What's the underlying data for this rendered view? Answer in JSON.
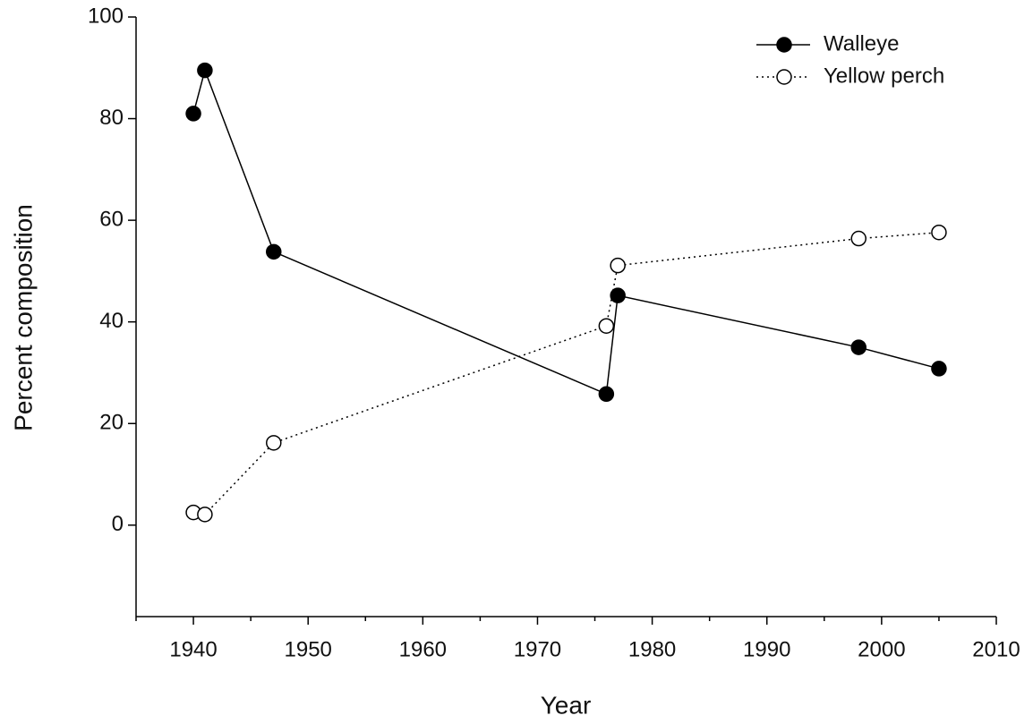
{
  "chart_data": {
    "type": "line",
    "xlabel": "Year",
    "ylabel": "Percent composition",
    "xlim": [
      1935,
      2010
    ],
    "xticks": [
      1940,
      1950,
      1960,
      1970,
      1980,
      1990,
      2000,
      2010
    ],
    "xminorticks": [
      1935,
      1945,
      1955,
      1965,
      1975,
      1985,
      1995,
      2005
    ],
    "ylim": [
      -18,
      100
    ],
    "yticks": [
      0,
      20,
      40,
      60,
      80,
      100
    ],
    "legend": "upper right",
    "series": [
      {
        "name": "Walleye",
        "color": "#000000",
        "linestyle": "solid",
        "marker": "filled",
        "x": [
          1940,
          1941,
          1947,
          1976,
          1977,
          1998,
          2005
        ],
        "values": [
          81.0,
          89.5,
          53.8,
          25.8,
          45.2,
          35.0,
          30.8
        ]
      },
      {
        "name": "Yellow perch",
        "color": "#000000",
        "linestyle": "dotted",
        "marker": "open",
        "x": [
          1940,
          1941,
          1947,
          1976,
          1977,
          1998,
          2005
        ],
        "values": [
          2.5,
          2.1,
          16.2,
          39.2,
          51.1,
          56.4,
          57.6
        ]
      }
    ]
  }
}
